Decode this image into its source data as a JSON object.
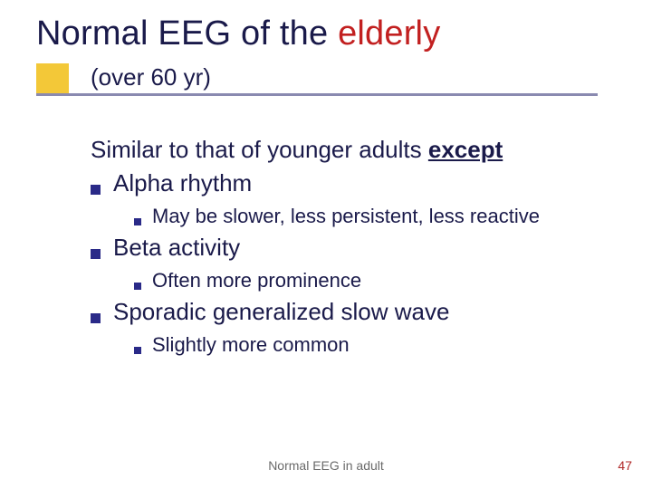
{
  "colors": {
    "text": "#1a1a4a",
    "red": "#c22020",
    "accent": "#f3c838",
    "underline": "#8a8ab0",
    "bullet": "#2a2a88",
    "footer": "#6a6a6a",
    "pagenum": "#b02828"
  },
  "title": {
    "plain": "Normal EEG of the ",
    "red": "elderly"
  },
  "subtitle": "(over 60 yr)",
  "intro": {
    "plain": "Similar to that of younger adults ",
    "except": "except"
  },
  "items": [
    {
      "label": "Alpha rhythm",
      "sub": "May be slower, less persistent, less reactive"
    },
    {
      "label": "Beta activity",
      "sub": "Often more prominence"
    },
    {
      "label": "Sporadic generalized slow wave",
      "sub": "Slightly more common"
    }
  ],
  "footer": {
    "center": "Normal EEG in adult",
    "page": "47"
  },
  "layout": {
    "underline_width": 620,
    "accent_box_size": 36
  }
}
